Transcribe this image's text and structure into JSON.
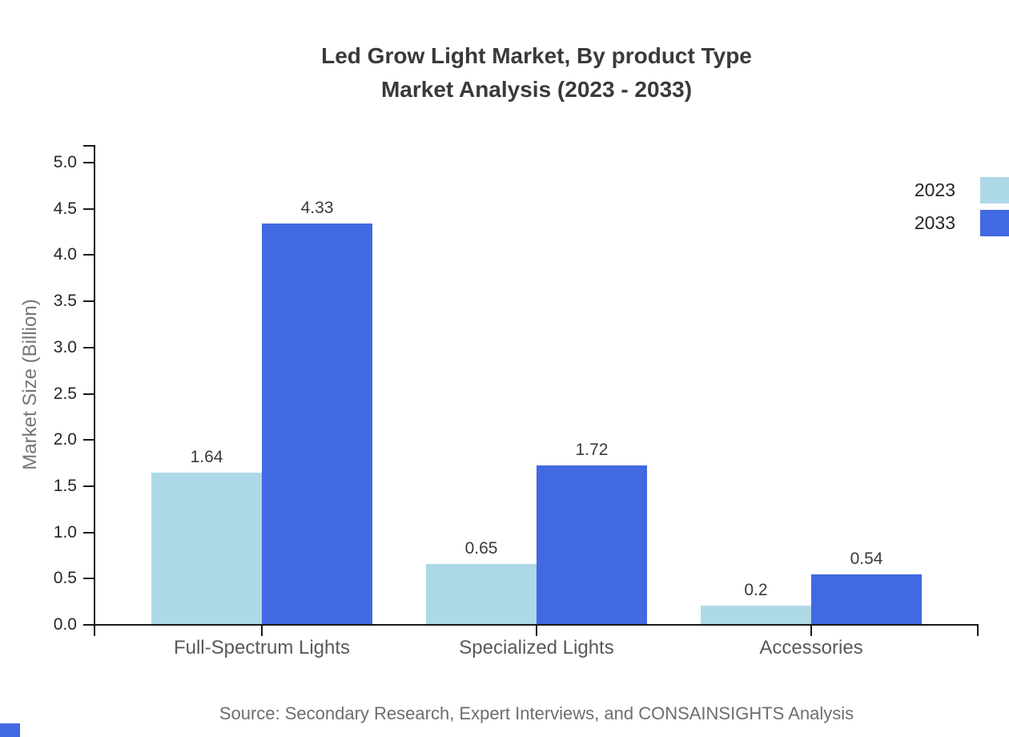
{
  "chart": {
    "title_line1": "Led Grow Light Market, By product Type",
    "title_line2": "Market Analysis (2023 - 2033)",
    "ylabel": "Market Size (Billion)",
    "source": "Source: Secondary Research, Expert Interviews, and CONSAINSIGHTS Analysis"
  },
  "colors": {
    "series_2023": "#ADD8E6",
    "series_2033": "#4169E1",
    "axis": "#1a1a1a",
    "title_text": "#3a3a3a",
    "muted_text": "#6e6e6e",
    "brand_square": "#4169E1"
  },
  "chart_data": {
    "type": "bar",
    "title": "Led Grow Light Market, By product Type Market Analysis (2023 - 2033)",
    "xlabel": "",
    "ylabel": "Market Size (Billion)",
    "categories": [
      "Full-Spectrum Lights",
      "Specialized Lights",
      "Accessories"
    ],
    "series": [
      {
        "name": "2023",
        "color": "#ADD8E6",
        "values": [
          1.64,
          0.65,
          0.2
        ],
        "value_labels": [
          "1.64",
          "0.65",
          "0.2"
        ]
      },
      {
        "name": "2033",
        "color": "#4169E1",
        "values": [
          4.33,
          1.72,
          0.54
        ],
        "value_labels": [
          "4.33",
          "1.72",
          "0.54"
        ]
      }
    ],
    "ylim": [
      0,
      5
    ],
    "ytick_labels": [
      "0.0",
      "0.5",
      "1.0",
      "1.5",
      "2.0",
      "2.5",
      "3.0",
      "3.5",
      "4.0",
      "4.5",
      "5.0"
    ],
    "grid": false,
    "legend_position": "top-right",
    "source_note": "Source: Secondary Research, Expert Interviews, and CONSAINSIGHTS Analysis"
  }
}
